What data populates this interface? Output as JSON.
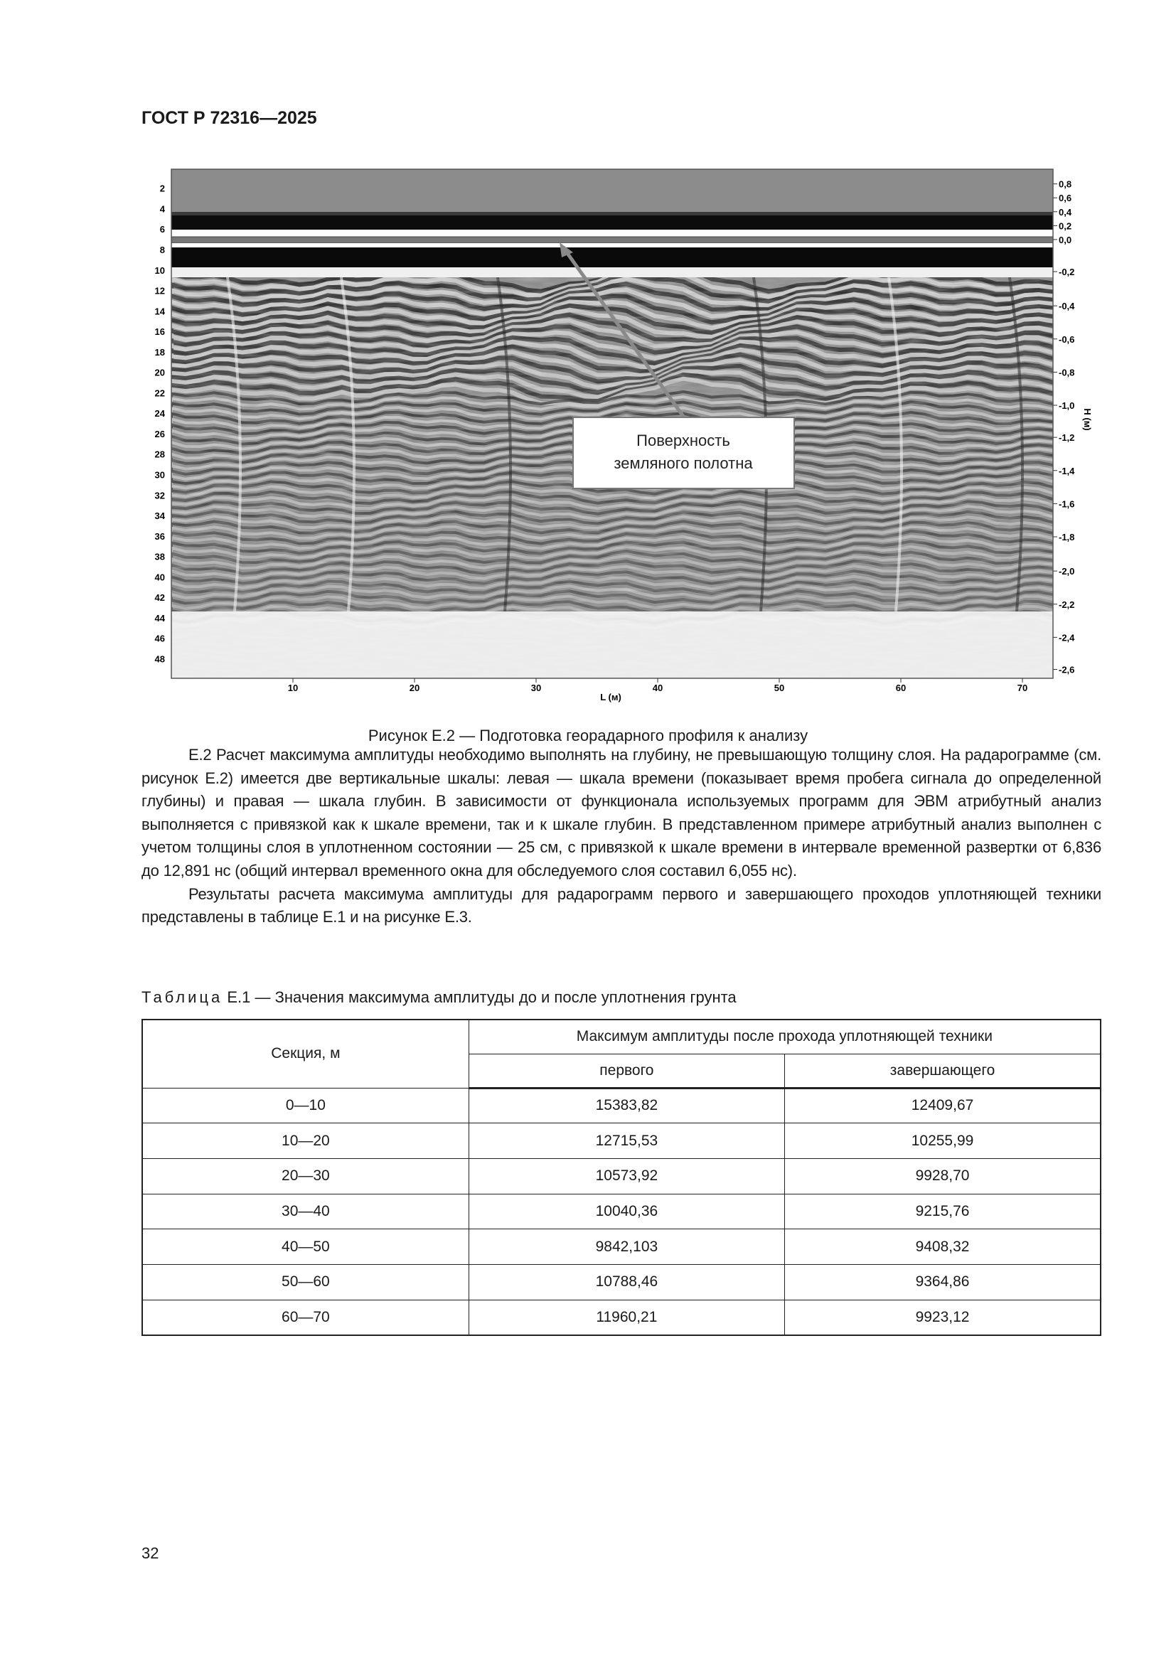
{
  "header": {
    "title": "ГОСТ Р 72316—2025"
  },
  "figure": {
    "left_axis_ticks": [
      "2",
      "4",
      "6",
      "8",
      "10",
      "12",
      "14",
      "16",
      "18",
      "20",
      "22",
      "24",
      "26",
      "28",
      "30",
      "32",
      "34",
      "36",
      "38",
      "40",
      "42",
      "44",
      "46",
      "48"
    ],
    "right_axis_ticks": [
      "0,8",
      "0,6",
      "0,4",
      "0,2",
      "0,0",
      "-0,2",
      "-0,4",
      "-0,6",
      "-0,8",
      "-1,0",
      "-1,2",
      "-1,4",
      "-1,6",
      "-1,8",
      "-2,0",
      "-2,2",
      "-2,4",
      "-2,6"
    ],
    "right_axis_label": "H (м)",
    "x_axis_ticks": [
      "10",
      "20",
      "30",
      "40",
      "50",
      "60",
      "70"
    ],
    "x_axis_label": "L (м)",
    "annotation_line1": "Поверхность",
    "annotation_line2": "земляного полотна",
    "caption": "Рисунок Е.2 — Подготовка георадарного профиля к анализу"
  },
  "body": {
    "p1": "Е.2 Расчет максимума амплитуды необходимо выполнять на глубину, не превышающую толщину слоя. На радарограмме (см. рисунок Е.2) имеется две вертикальные шкалы: левая — шкала времени (показывает время пробега сигнала до определенной глубины) и правая — шкала глубин. В зависимости от функционала используемых программ для ЭВМ атрибутный анализ выполняется с привязкой как к шкале времени, так и к шкале глубин. В представленном примере атрибутный анализ выполнен с учетом толщины слоя в уплотненном состоянии — 25 см, с привязкой к шкале времени в интервале временной развертки от 6,836 до 12,891 нс (общий интервал временного окна для обследуемого слоя составил 6,055 нс).",
    "p2": "Результаты расчета максимума амплитуды для радарограмм первого и завершающего проходов уплотняющей техники представлены в таблице Е.1 и на рисунке Е.3."
  },
  "table": {
    "title_prefix": "Таблица",
    "title_rest": " Е.1 — Значения максимума амплитуды до и после уплотнения грунта",
    "col_section": "Секция, м",
    "col_group": "Максимум амплитуды после прохода уплотняющей техники",
    "col_first": "первого",
    "col_last": "завершающего",
    "rows": [
      [
        "0—10",
        "15383,82",
        "12409,67"
      ],
      [
        "10—20",
        "12715,53",
        "10255,99"
      ],
      [
        "20—30",
        "10573,92",
        "9928,70"
      ],
      [
        "30—40",
        "10040,36",
        "9215,76"
      ],
      [
        "40—50",
        "9842,103",
        "9408,32"
      ],
      [
        "50—60",
        "10788,46",
        "9364,86"
      ],
      [
        "60—70",
        "11960,21",
        "9923,12"
      ]
    ]
  },
  "page_number": "32"
}
